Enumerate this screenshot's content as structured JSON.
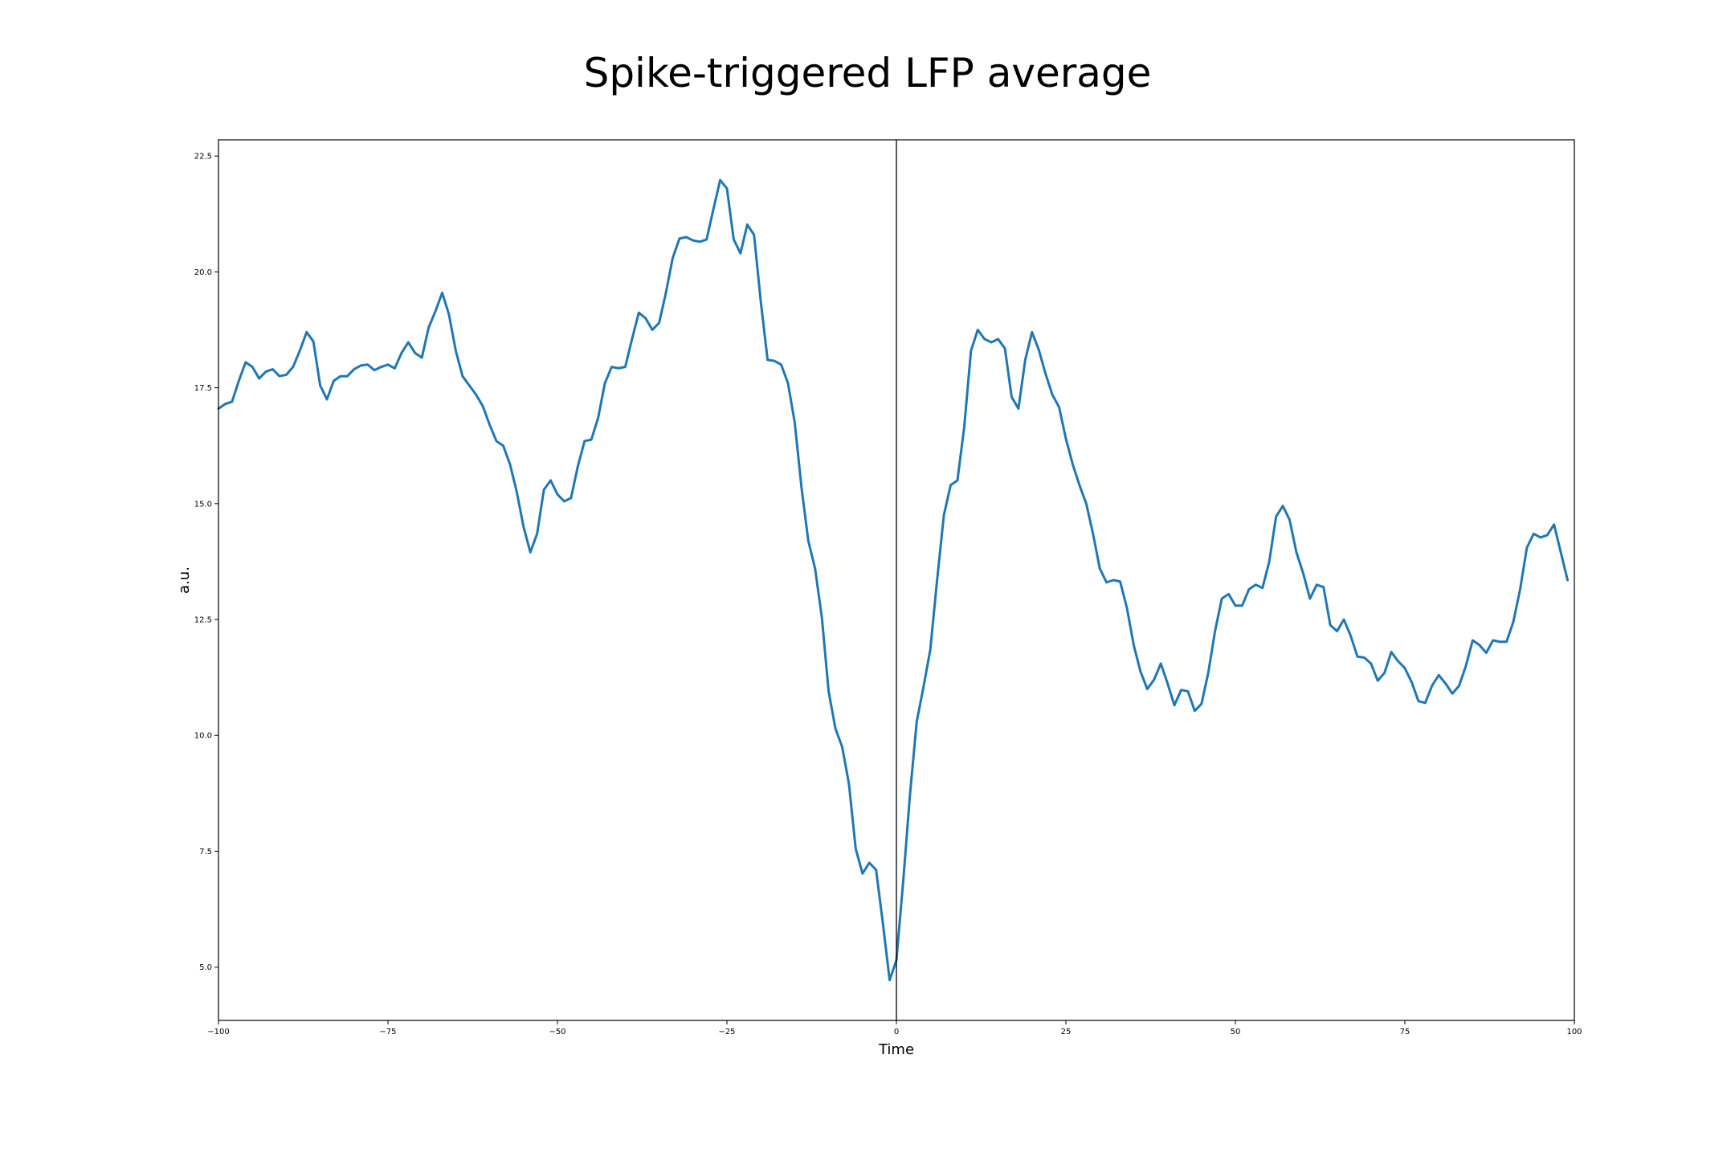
{
  "chart_data": {
    "type": "line",
    "title": "Spike-triggered LFP average",
    "xlabel": "Time",
    "ylabel": "a.u.",
    "xlim": [
      -100,
      100
    ],
    "ylim": [
      3.85,
      22.85
    ],
    "xticks": [
      -100,
      -75,
      -50,
      -25,
      0,
      25,
      50,
      75,
      100
    ],
    "xtick_labels": [
      "−100",
      "−75",
      "−50",
      "−25",
      "0",
      "25",
      "50",
      "75",
      "100"
    ],
    "yticks": [
      5.0,
      7.5,
      10.0,
      12.5,
      15.0,
      17.5,
      20.0,
      22.5
    ],
    "ytick_labels": [
      "5.0",
      "7.5",
      "10.0",
      "12.5",
      "15.0",
      "17.5",
      "20.0",
      "22.5"
    ],
    "grid": false,
    "vline_x": 0,
    "line_color": "#1f77b4",
    "series": [
      {
        "x": [
          -100,
          -99,
          -98,
          -97,
          -96,
          -95,
          -94,
          -93,
          -92,
          -91,
          -90,
          -89,
          -88,
          -87,
          -86,
          -85,
          -84,
          -83,
          -82,
          -81,
          -80,
          -79,
          -78,
          -77,
          -76,
          -75,
          -74,
          -73,
          -72,
          -71,
          -70,
          -69,
          -68,
          -67,
          -66,
          -65,
          -64,
          -63,
          -62,
          -61,
          -60,
          -59,
          -58,
          -57,
          -56,
          -55,
          -54,
          -53,
          -52,
          -51,
          -50,
          -49,
          -48,
          -47,
          -46,
          -45,
          -44,
          -43,
          -42,
          -41,
          -40,
          -39,
          -38,
          -37,
          -36,
          -35,
          -34,
          -33,
          -32,
          -31,
          -30,
          -29,
          -28,
          -27,
          -26,
          -25,
          -24,
          -23,
          -22,
          -21,
          -20,
          -19,
          -18,
          -17,
          -16,
          -15,
          -14,
          -13,
          -12,
          -11,
          -10,
          -9,
          -8,
          -7,
          -6,
          -5,
          -4,
          -3,
          -2,
          -1,
          0,
          1,
          2,
          3,
          4,
          5,
          6,
          7,
          8,
          9,
          10,
          11,
          12,
          13,
          14,
          15,
          16,
          17,
          18,
          19,
          20,
          21,
          22,
          23,
          24,
          25,
          26,
          27,
          28,
          29,
          30,
          31,
          32,
          33,
          34,
          35,
          36,
          37,
          38,
          39,
          40,
          41,
          42,
          43,
          44,
          45,
          46,
          47,
          48,
          49,
          50,
          51,
          52,
          53,
          54,
          55,
          56,
          57,
          58,
          59,
          60,
          61,
          62,
          63,
          64,
          65,
          66,
          67,
          68,
          69,
          70,
          71,
          72,
          73,
          74,
          75,
          76,
          77,
          78,
          79,
          80,
          81,
          82,
          83,
          84,
          85,
          86,
          87,
          88,
          89,
          90,
          91,
          92,
          93,
          94,
          95,
          96,
          97,
          98,
          99
        ],
        "y": [
          17.05,
          17.15,
          17.2,
          17.65,
          18.05,
          17.95,
          17.7,
          17.85,
          17.9,
          17.75,
          17.78,
          17.95,
          18.3,
          18.7,
          18.5,
          17.55,
          17.25,
          17.65,
          17.75,
          17.75,
          17.9,
          17.98,
          18.0,
          17.88,
          17.95,
          18.0,
          17.92,
          18.25,
          18.48,
          18.25,
          18.15,
          18.8,
          19.15,
          19.55,
          19.08,
          18.3,
          17.75,
          17.55,
          17.35,
          17.1,
          16.7,
          16.35,
          16.25,
          15.85,
          15.25,
          14.5,
          13.95,
          14.35,
          15.3,
          15.5,
          15.2,
          15.05,
          15.12,
          15.8,
          16.35,
          16.38,
          16.85,
          17.6,
          17.95,
          17.92,
          17.95,
          18.55,
          19.12,
          19.0,
          18.75,
          18.9,
          19.55,
          20.3,
          20.72,
          20.75,
          20.68,
          20.65,
          20.7,
          21.35,
          21.98,
          21.8,
          20.7,
          20.4,
          21.02,
          20.8,
          19.35,
          18.1,
          18.08,
          18.0,
          17.6,
          16.75,
          15.35,
          14.2,
          13.6,
          12.55,
          10.95,
          10.15,
          9.75,
          8.95,
          7.55,
          7.02,
          7.25,
          7.1,
          5.95,
          4.72,
          5.15,
          6.85,
          8.72,
          10.3,
          11.05,
          11.85,
          13.35,
          14.75,
          15.4,
          15.5,
          16.65,
          18.3,
          18.75,
          18.55,
          18.48,
          18.55,
          18.35,
          17.3,
          17.05,
          18.1,
          18.7,
          18.32,
          17.8,
          17.35,
          17.08,
          16.4,
          15.85,
          15.4,
          15.0,
          14.35,
          13.6,
          13.3,
          13.35,
          13.32,
          12.75,
          11.95,
          11.38,
          11.0,
          11.2,
          11.55,
          11.12,
          10.65,
          10.98,
          10.95,
          10.53,
          10.68,
          11.35,
          12.25,
          12.95,
          13.05,
          12.8,
          12.8,
          13.15,
          13.25,
          13.18,
          13.75,
          14.72,
          14.95,
          14.65,
          13.95,
          13.5,
          12.95,
          13.25,
          13.2,
          12.38,
          12.25,
          12.5,
          12.15,
          11.7,
          11.68,
          11.55,
          11.18,
          11.35,
          11.8,
          11.6,
          11.45,
          11.15,
          10.74,
          10.7,
          11.07,
          11.3,
          11.12,
          10.9,
          11.07,
          11.5,
          12.05,
          11.95,
          11.78,
          12.05,
          12.02,
          12.02,
          12.45,
          13.15,
          14.05,
          14.35,
          14.27,
          14.32,
          14.55,
          13.95,
          13.35
        ]
      }
    ]
  }
}
